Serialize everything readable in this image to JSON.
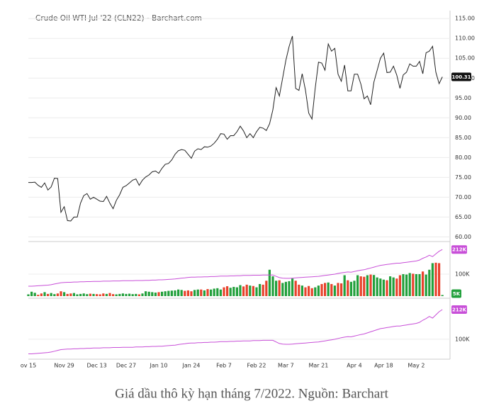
{
  "chart_data": [
    {
      "type": "line",
      "title": "Crude Oil WTI Jul '22 (CLN22) - Barchart.com",
      "ylim": [
        59,
        117
      ],
      "yticks": [
        {
          "value": 60,
          "label": "60.00"
        },
        {
          "value": 65,
          "label": "65.00"
        },
        {
          "value": 70,
          "label": "70.00"
        },
        {
          "value": 75,
          "label": "75.00"
        },
        {
          "value": 80,
          "label": "80.00"
        },
        {
          "value": 85,
          "label": "85.00"
        },
        {
          "value": 90,
          "label": "90.00"
        },
        {
          "value": 95,
          "label": "95.00"
        },
        {
          "value": 100,
          "label": "100.00"
        },
        {
          "value": 105,
          "label": "105.00"
        },
        {
          "value": 110,
          "label": "110.00"
        },
        {
          "value": 115,
          "label": "115.00"
        }
      ],
      "grid": true,
      "series": [
        {
          "color": "#222222",
          "values": [
            73.7,
            73.7,
            73.8,
            73.0,
            72.5,
            73.6,
            71.8,
            72.6,
            74.8,
            74.7,
            66.2,
            67.6,
            64.1,
            64.0,
            65.0,
            65.0,
            68.5,
            70.4,
            70.9,
            69.5,
            70.0,
            69.5,
            69.0,
            68.9,
            70.2,
            68.5,
            67.1,
            69.2,
            70.6,
            72.5,
            72.9,
            73.6,
            74.3,
            74.6,
            73.0,
            74.3,
            75.1,
            75.6,
            76.4,
            76.6,
            76.0,
            77.3,
            78.3,
            78.5,
            79.4,
            80.8,
            81.7,
            82.0,
            81.8,
            80.8,
            79.8,
            81.6,
            82.2,
            82.0,
            82.7,
            82.6,
            82.9,
            83.6,
            84.6,
            86.0,
            85.9,
            84.6,
            85.5,
            85.5,
            86.5,
            87.9,
            86.7,
            85.0,
            86.0,
            85.0,
            86.5,
            87.6,
            87.4,
            86.8,
            88.5,
            92.0,
            97.6,
            95.5,
            100.0,
            104.5,
            108.0,
            110.6,
            97.4,
            96.9,
            101.1,
            97.0,
            91.2,
            89.7,
            97.5,
            104.0,
            103.8,
            102.0,
            108.6,
            106.8,
            107.5,
            101.0,
            99.2,
            103.3,
            96.8,
            96.8,
            101.0,
            101.0,
            98.5,
            94.8,
            95.5,
            93.3,
            99.0,
            102.0,
            105.0,
            106.3,
            101.4,
            101.5,
            103.0,
            100.8,
            97.4,
            100.8,
            101.5,
            103.6,
            103.0,
            103.0,
            104.2,
            101.1,
            106.4,
            106.8,
            108.0,
            101.5,
            98.6,
            100.31
          ]
        }
      ]
    },
    {
      "type": "bar",
      "ylim": [
        0,
        245000
      ],
      "yticks": [
        {
          "value": 100000,
          "label": "100K"
        }
      ],
      "series": [
        {
          "up_color": "#22a03c",
          "down_color": "#e8422c",
          "values": [
            8000,
            20000,
            15000,
            6000,
            12000,
            18000,
            10000,
            14000,
            9000,
            12000,
            22000,
            18000,
            10000,
            12000,
            14000,
            8000,
            10000,
            12000,
            9000,
            11000,
            10000,
            9000,
            8000,
            12000,
            10000,
            14000,
            9000,
            8000,
            10000,
            12000,
            10000,
            11000,
            9000,
            10000,
            8000,
            12000,
            22000,
            20000,
            18000,
            16000,
            18000,
            20000,
            22000,
            24000,
            25000,
            26000,
            30000,
            28000,
            24000,
            26000,
            22000,
            28000,
            30000,
            30000,
            26000,
            32000,
            30000,
            34000,
            36000,
            30000,
            40000,
            45000,
            38000,
            42000,
            40000,
            50000,
            44000,
            52000,
            48000,
            46000,
            40000,
            55000,
            52000,
            70000,
            120000,
            90000,
            70000,
            72000,
            60000,
            65000,
            68000,
            80000,
            70000,
            52000,
            48000,
            40000,
            46000,
            36000,
            40000,
            48000,
            55000,
            60000,
            62000,
            55000,
            48000,
            60000,
            58000,
            95000,
            72000,
            65000,
            70000,
            95000,
            90000,
            88000,
            95000,
            98000,
            96000,
            85000,
            80000,
            75000,
            72000,
            90000,
            85000,
            80000,
            95000,
            100000,
            98000,
            105000,
            102000,
            100000,
            100000,
            112000,
            98000,
            120000,
            150000,
            152000,
            150000,
            5000
          ],
          "value_labels": [
            null,
            null,
            null,
            null,
            null,
            null,
            null,
            null,
            null,
            null,
            null,
            null,
            null,
            null,
            null,
            null,
            null,
            null,
            null,
            null,
            null,
            null,
            null,
            null,
            null,
            null,
            null,
            null,
            null,
            null,
            null,
            null,
            null,
            null,
            null,
            null,
            null,
            null,
            null,
            null,
            null,
            null,
            null,
            null,
            null,
            null,
            null,
            null,
            null,
            null,
            null,
            null,
            null,
            null,
            null,
            null,
            null,
            null,
            null,
            null,
            null,
            null,
            null,
            null,
            null,
            null,
            null,
            null,
            null,
            null,
            null,
            null,
            null,
            null,
            null,
            null,
            null,
            null,
            null,
            null,
            null,
            null,
            null,
            null,
            null,
            null,
            null,
            null,
            null,
            null,
            null,
            null,
            null,
            null,
            null,
            null,
            null,
            null,
            null,
            null,
            null,
            null,
            null,
            null,
            null,
            null,
            null,
            null,
            null,
            null,
            null,
            null,
            null,
            null,
            null,
            null,
            null,
            null,
            null,
            null,
            null,
            null,
            null,
            null,
            null,
            null,
            null,
            "5K"
          ]
        }
      ]
    },
    {
      "type": "line",
      "ylim": [
        25000,
        244000
      ],
      "yticks": [
        {
          "value": 100000,
          "label": "100K"
        }
      ],
      "categories": [
        "ov 15",
        null,
        null,
        null,
        null,
        null,
        null,
        null,
        null,
        null,
        null,
        "Nov 29",
        null,
        null,
        null,
        null,
        null,
        null,
        null,
        null,
        null,
        "Dec 13",
        null,
        null,
        null,
        null,
        null,
        null,
        null,
        null,
        "Dec 27",
        null,
        null,
        null,
        null,
        null,
        null,
        null,
        null,
        null,
        "Jan 10",
        null,
        null,
        null,
        null,
        null,
        null,
        null,
        null,
        null,
        "Jan 24",
        null,
        null,
        null,
        null,
        null,
        null,
        null,
        null,
        null,
        "Feb 7",
        null,
        null,
        null,
        null,
        null,
        null,
        null,
        null,
        null,
        "Feb 22",
        null,
        null,
        null,
        null,
        null,
        null,
        null,
        null,
        "Mar 7",
        null,
        null,
        null,
        null,
        null,
        null,
        null,
        null,
        null,
        "Mar 21",
        null,
        null,
        null,
        null,
        null,
        null,
        null,
        null,
        null,
        null,
        "Apr 4",
        null,
        null,
        null,
        null,
        null,
        null,
        null,
        null,
        "Apr 18",
        null,
        null,
        null,
        null,
        null,
        null,
        null,
        null,
        null,
        "May 2",
        null,
        null,
        null,
        null,
        null,
        null,
        null,
        null
      ],
      "series": [
        {
          "color": "#c84fd8",
          "values": [
            45000,
            45000,
            46000,
            47000,
            48000,
            49000,
            50000,
            52000,
            55000,
            58000,
            61000,
            62000,
            63000,
            63000,
            64000,
            64000,
            65000,
            65000,
            66000,
            66000,
            67000,
            67000,
            67000,
            68000,
            68000,
            68000,
            69000,
            69000,
            69000,
            70000,
            70000,
            70000,
            70000,
            71000,
            71000,
            71000,
            72000,
            72000,
            73000,
            73000,
            74000,
            74000,
            75000,
            76000,
            77000,
            78000,
            80000,
            82000,
            83000,
            85000,
            86000,
            86000,
            87000,
            87000,
            88000,
            88000,
            89000,
            89000,
            90000,
            91000,
            91000,
            91000,
            92000,
            92000,
            93000,
            93000,
            94000,
            94000,
            94000,
            95000,
            95000,
            95000,
            96000,
            96000,
            96000,
            96000,
            90000,
            84000,
            82000,
            81000,
            81000,
            82000,
            83000,
            84000,
            85000,
            86000,
            87000,
            88000,
            89000,
            90000,
            92000,
            94000,
            96000,
            98000,
            100000,
            103000,
            106000,
            108000,
            110000,
            109000,
            112000,
            115000,
            118000,
            120000,
            124000,
            128000,
            132000,
            136000,
            140000,
            142000,
            144000,
            146000,
            148000,
            150000,
            150000,
            152000,
            154000,
            156000,
            158000,
            160000,
            164000,
            172000,
            178000,
            186000,
            180000,
            192000,
            204000,
            212000
          ],
          "value_labels": [
            null,
            null,
            null,
            null,
            null,
            null,
            null,
            null,
            null,
            null,
            null,
            null,
            null,
            null,
            null,
            null,
            null,
            null,
            null,
            null,
            null,
            null,
            null,
            null,
            null,
            null,
            null,
            null,
            null,
            null,
            null,
            null,
            null,
            null,
            null,
            null,
            null,
            null,
            null,
            null,
            null,
            null,
            null,
            null,
            null,
            null,
            null,
            null,
            null,
            null,
            null,
            null,
            null,
            null,
            null,
            null,
            null,
            null,
            null,
            null,
            null,
            null,
            null,
            null,
            null,
            null,
            null,
            null,
            null,
            null,
            null,
            null,
            null,
            null,
            null,
            null,
            null,
            null,
            null,
            null,
            null,
            null,
            null,
            null,
            null,
            null,
            null,
            null,
            null,
            null,
            null,
            null,
            null,
            null,
            null,
            null,
            null,
            null,
            null,
            null,
            null,
            null,
            null,
            null,
            null,
            null,
            null,
            null,
            null,
            null,
            null,
            null,
            null,
            null,
            null,
            null,
            null,
            null,
            null,
            null,
            null,
            null,
            null,
            null,
            null,
            null,
            null,
            "212K"
          ]
        }
      ]
    }
  ],
  "caption": "Giá dầu thô kỳ hạn tháng 7/2022. Nguồn: Barchart"
}
